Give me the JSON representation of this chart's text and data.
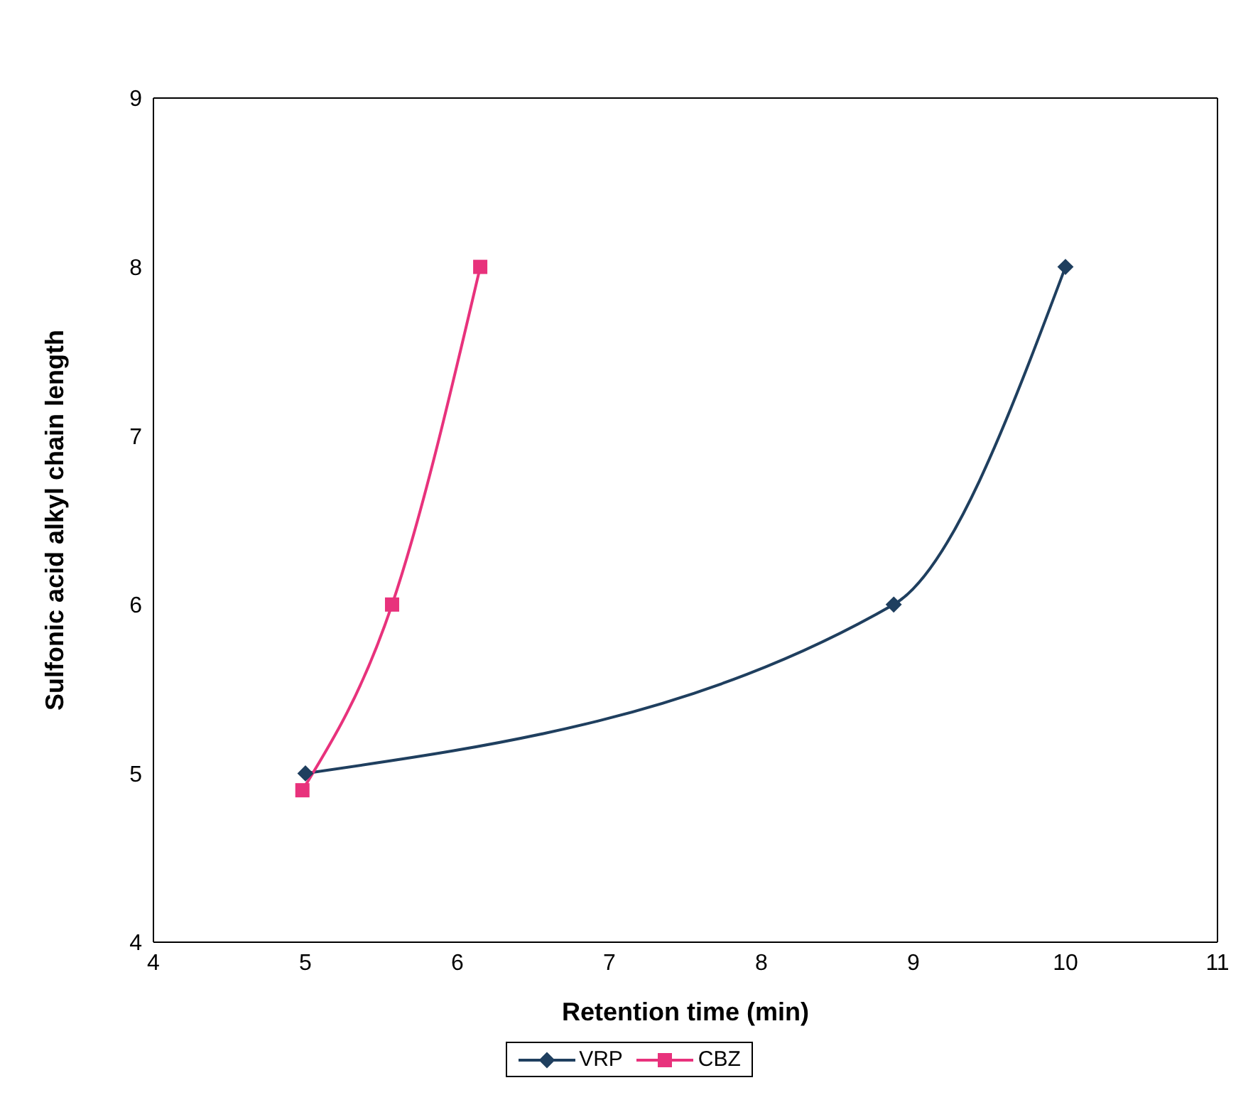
{
  "chart_data": {
    "type": "line",
    "xlabel": "Retention time (min)",
    "ylabel": "Sulfonic acid alkyl chain length",
    "xlim": [
      4,
      11
    ],
    "xticks": [
      4,
      5,
      6,
      7,
      8,
      9,
      10,
      11
    ],
    "ylim": [
      4,
      9
    ],
    "yticks": [
      4,
      5,
      6,
      7,
      8,
      9
    ],
    "grid": false,
    "legend": "bottom",
    "line_style": "solid",
    "series": [
      {
        "name": "VRP",
        "color": "#1f3f5f",
        "marker": "diamond",
        "x": [
          5.0,
          8.87,
          10.0
        ],
        "values": [
          5,
          6,
          8
        ]
      },
      {
        "name": "CBZ",
        "color": "#e8327c",
        "marker": "square",
        "x": [
          4.98,
          5.57,
          6.15
        ],
        "values": [
          4.9,
          6,
          8
        ]
      }
    ]
  }
}
